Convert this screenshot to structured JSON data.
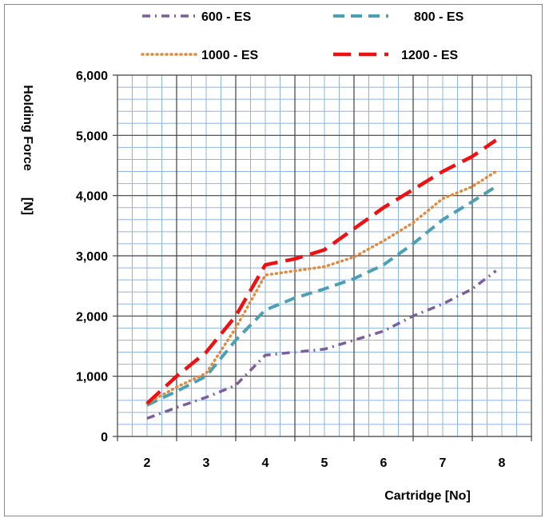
{
  "chart_data": {
    "type": "line",
    "title": "",
    "xlabel": "Cartridge [No]",
    "ylabel_line1": "Holding Force",
    "ylabel_line2": "[N]",
    "x_ticks": [
      "2",
      "3",
      "4",
      "5",
      "6",
      "7",
      "8"
    ],
    "xlim": [
      1.5,
      8.5
    ],
    "ylim": [
      0,
      6000
    ],
    "y_ticks": [
      {
        "value": 0,
        "label": "0"
      },
      {
        "value": 1000,
        "label": "1,000"
      },
      {
        "value": 2000,
        "label": "2,000"
      },
      {
        "value": 3000,
        "label": "3,000"
      },
      {
        "value": 4000,
        "label": "4,000"
      },
      {
        "value": 5000,
        "label": "5,000"
      },
      {
        "value": 6000,
        "label": "6,000"
      }
    ],
    "grid": true,
    "legend_position": "top",
    "series": [
      {
        "name": "600 - ES",
        "color": "#7B5E9C",
        "style": "dash-dot",
        "points": [
          [
            2,
            300
          ],
          [
            2.5,
            480
          ],
          [
            3,
            650
          ],
          [
            3.5,
            850
          ],
          [
            4,
            1350
          ],
          [
            4.5,
            1400
          ],
          [
            5,
            1450
          ],
          [
            5.5,
            1600
          ],
          [
            6,
            1750
          ],
          [
            6.5,
            2000
          ],
          [
            7,
            2200
          ],
          [
            7.5,
            2450
          ],
          [
            7.9,
            2750
          ]
        ]
      },
      {
        "name": "800 - ES",
        "color": "#4BA0B4",
        "style": "dash",
        "points": [
          [
            2,
            520
          ],
          [
            2.5,
            750
          ],
          [
            3,
            1000
          ],
          [
            3.5,
            1600
          ],
          [
            4,
            2100
          ],
          [
            4.5,
            2300
          ],
          [
            5,
            2450
          ],
          [
            5.5,
            2620
          ],
          [
            6,
            2850
          ],
          [
            6.5,
            3200
          ],
          [
            7,
            3600
          ],
          [
            7.5,
            3900
          ],
          [
            7.9,
            4150
          ]
        ]
      },
      {
        "name": "1000 - ES",
        "color": "#E08A3C",
        "style": "dot",
        "points": [
          [
            2,
            550
          ],
          [
            2.5,
            820
          ],
          [
            3,
            1050
          ],
          [
            3.5,
            1800
          ],
          [
            4,
            2680
          ],
          [
            4.5,
            2750
          ],
          [
            5,
            2820
          ],
          [
            5.5,
            2980
          ],
          [
            6,
            3250
          ],
          [
            6.5,
            3550
          ],
          [
            7,
            3950
          ],
          [
            7.5,
            4150
          ],
          [
            7.9,
            4400
          ]
        ]
      },
      {
        "name": "1200 - ES",
        "color": "#EE1111",
        "style": "long-dash",
        "points": [
          [
            2,
            550
          ],
          [
            2.5,
            1000
          ],
          [
            3,
            1400
          ],
          [
            3.5,
            2000
          ],
          [
            4,
            2850
          ],
          [
            4.5,
            2950
          ],
          [
            5,
            3100
          ],
          [
            5.5,
            3450
          ],
          [
            6,
            3800
          ],
          [
            6.5,
            4100
          ],
          [
            7,
            4400
          ],
          [
            7.5,
            4650
          ],
          [
            7.9,
            4920
          ]
        ]
      }
    ]
  }
}
